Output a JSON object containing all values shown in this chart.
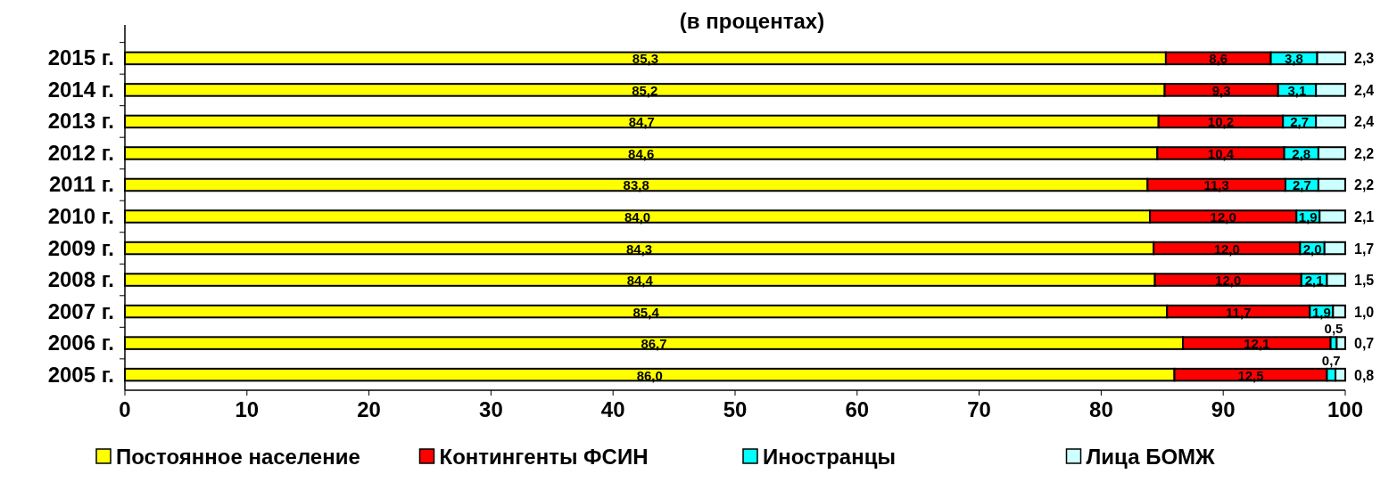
{
  "chart_data": {
    "type": "bar",
    "orientation": "horizontal",
    "stacked": true,
    "title": "(в процентах)",
    "categories": [
      "2015 г.",
      "2014 г.",
      "2013 г.",
      "2012 г.",
      "2011 г.",
      "2010 г.",
      "2009 г.",
      "2008 г.",
      "2007 г.",
      "2006 г.",
      "2005 г."
    ],
    "series": [
      {
        "name": "Постоянное население",
        "color": "#ffff00",
        "values": [
          85.3,
          85.2,
          84.7,
          84.6,
          83.8,
          84.0,
          84.3,
          84.4,
          85.4,
          86.7,
          86.0
        ],
        "value_labels": [
          "85,3",
          "85,2",
          "84,7",
          "84,6",
          "83,8",
          "84,0",
          "84,3",
          "84,4",
          "85,4",
          "86,7",
          "86,0"
        ]
      },
      {
        "name": "Контингенты ФСИН",
        "color": "#ff0000",
        "values": [
          8.6,
          9.3,
          10.2,
          10.4,
          11.3,
          12.0,
          12.0,
          12.0,
          11.7,
          12.1,
          12.5
        ],
        "value_labels": [
          "8,6",
          "9,3",
          "10,2",
          "10,4",
          "11,3",
          "12,0",
          "12,0",
          "12,0",
          "11,7",
          "12,1",
          "12,5"
        ]
      },
      {
        "name": "Иностранцы",
        "color": "#00ffff",
        "values": [
          3.8,
          3.1,
          2.7,
          2.8,
          2.7,
          1.9,
          2.0,
          2.1,
          1.9,
          0.5,
          0.7
        ],
        "value_labels": [
          "3,8",
          "3,1",
          "2,7",
          "2,8",
          "2,7",
          "1,9",
          "2,0",
          "2,1",
          "1,9",
          "0,5",
          "0,7"
        ]
      },
      {
        "name": "Лица БОМЖ",
        "color": "#ccffff",
        "values": [
          2.3,
          2.4,
          2.4,
          2.2,
          2.2,
          2.1,
          1.7,
          1.5,
          1.0,
          0.7,
          0.8
        ],
        "value_labels": [
          "2,3",
          "2,4",
          "2,4",
          "2,2",
          "2,2",
          "2,1",
          "1,7",
          "1,5",
          "1,0",
          "0,7",
          "0,8"
        ]
      }
    ],
    "xlim": [
      0,
      100
    ],
    "xticks": [
      0,
      10,
      20,
      30,
      40,
      50,
      60,
      70,
      80,
      90,
      100
    ],
    "grid": false,
    "legend": "bottom"
  }
}
